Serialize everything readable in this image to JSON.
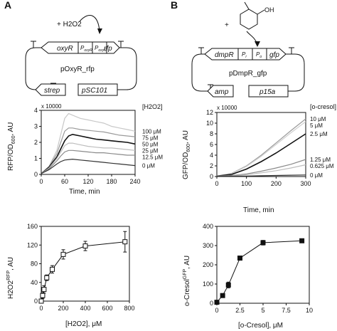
{
  "panels": {
    "A": {
      "letter": "A",
      "inducer": "+ H2O2",
      "plasmid": {
        "name": "pOxyR_rfp",
        "genes": {
          "oxyR": "oxyR",
          "rfp": "rfp",
          "strep": "strep",
          "ori": "pSC101"
        },
        "promoters": {
          "p1": "P",
          "p1_sub": "oxyR",
          "p2": "P",
          "p2_sub": "oxyS"
        }
      },
      "time_course": {
        "legend_title": "[H2O2]",
        "multiplier": "x 10000",
        "ylabel_main": "RFP/OD",
        "ylabel_sub": "600",
        "ylabel_tail": ", AU",
        "xlabel": "Time, min",
        "xticks": [
          "0",
          "60",
          "120",
          "180",
          "240"
        ],
        "yticks": [
          "0",
          "1",
          "2",
          "3",
          "4"
        ]
      },
      "dose": {
        "ylabel_main": "H2O2",
        "ylabel_sup": "RFP",
        "ylabel_tail": ", AU",
        "xlabel": "[H2O2], μM",
        "xticks": [
          "0",
          "200",
          "400",
          "600",
          "800"
        ],
        "yticks": [
          "0",
          "40",
          "80",
          "120",
          "160"
        ]
      }
    },
    "B": {
      "letter": "B",
      "inducer": "+",
      "molecule_oh": "OH",
      "plasmid": {
        "name": "pDmpR_gfp",
        "genes": {
          "dmpR": "dmpR",
          "gfp": "gfp",
          "amp": "amp",
          "ori": "p15a"
        },
        "promoters": {
          "p1": "P",
          "p1_sub": "r",
          "p2": "P",
          "p2_sub": "o"
        }
      },
      "time_course": {
        "legend_title": "[o-cresol]",
        "multiplier": "x 10000",
        "ylabel_main": "GFP/OD",
        "ylabel_sub": "600",
        "ylabel_tail": ", AU",
        "xlabel": "Time, min",
        "xticks": [
          "0",
          "100",
          "200",
          "300"
        ],
        "yticks": [
          "0",
          "2",
          "4",
          "6",
          "8",
          "10",
          "12"
        ]
      },
      "dose": {
        "ylabel_main": "o-Cresol",
        "ylabel_sup": "GFP",
        "ylabel_tail": ", AU",
        "xlabel": "[o-Cresol], μM",
        "xticks": [
          "0",
          "2.5",
          "5",
          "7.5",
          "10"
        ],
        "yticks": [
          "0",
          "100",
          "200",
          "300",
          "400"
        ]
      }
    }
  },
  "chart_data": [
    {
      "type": "line",
      "panel": "A",
      "xlabel": "Time, min",
      "ylabel": "RFP/OD600, AU",
      "xlim": [
        0,
        240
      ],
      "ylim": [
        0,
        4
      ],
      "y_multiplier": "x 10000",
      "legend_title": "[H2O2]",
      "series": [
        {
          "name": "100 μM",
          "color": "#c8c8c8",
          "points": [
            [
              0,
              0.05
            ],
            [
              20,
              0.5
            ],
            [
              40,
              1.5
            ],
            [
              50,
              2.5
            ],
            [
              60,
              3.5
            ],
            [
              70,
              3.8
            ],
            [
              80,
              3.7
            ],
            [
              100,
              3.5
            ],
            [
              120,
              3.4
            ],
            [
              140,
              3.3
            ],
            [
              160,
              3.2
            ],
            [
              180,
              3.0
            ],
            [
              200,
              2.9
            ],
            [
              220,
              2.8
            ],
            [
              240,
              2.7
            ]
          ]
        },
        {
          "name": "75 μM",
          "color": "#9a9a9a",
          "points": [
            [
              0,
              0.05
            ],
            [
              20,
              0.5
            ],
            [
              40,
              1.3
            ],
            [
              50,
              2.0
            ],
            [
              60,
              2.7
            ],
            [
              70,
              2.9
            ],
            [
              80,
              2.9
            ],
            [
              100,
              2.8
            ],
            [
              120,
              2.75
            ],
            [
              140,
              2.7
            ],
            [
              160,
              2.65
            ],
            [
              180,
              2.55
            ],
            [
              200,
              2.45
            ],
            [
              220,
              2.4
            ],
            [
              240,
              2.35
            ]
          ]
        },
        {
          "name": "50 μM",
          "color": "#111111",
          "points": [
            [
              0,
              0.05
            ],
            [
              20,
              0.45
            ],
            [
              40,
              1.1
            ],
            [
              50,
              1.6
            ],
            [
              60,
              2.1
            ],
            [
              70,
              2.4
            ],
            [
              80,
              2.5
            ],
            [
              100,
              2.4
            ],
            [
              120,
              2.3
            ],
            [
              140,
              2.2
            ],
            [
              160,
              2.15
            ],
            [
              180,
              2.1
            ],
            [
              200,
              2.05
            ],
            [
              220,
              2.0
            ],
            [
              240,
              1.9
            ]
          ]
        },
        {
          "name": "25 μM",
          "color": "#bdbdbd",
          "points": [
            [
              0,
              0.05
            ],
            [
              20,
              0.4
            ],
            [
              40,
              1.0
            ],
            [
              50,
              1.4
            ],
            [
              60,
              1.8
            ],
            [
              70,
              1.95
            ],
            [
              80,
              1.95
            ],
            [
              100,
              1.85
            ],
            [
              120,
              1.75
            ],
            [
              140,
              1.7
            ],
            [
              160,
              1.65
            ],
            [
              180,
              1.65
            ],
            [
              200,
              1.6
            ],
            [
              220,
              1.55
            ],
            [
              240,
              1.5
            ]
          ]
        },
        {
          "name": "12.5 μM",
          "color": "#8a8a8a",
          "points": [
            [
              0,
              0.05
            ],
            [
              20,
              0.35
            ],
            [
              40,
              0.85
            ],
            [
              50,
              1.15
            ],
            [
              60,
              1.4
            ],
            [
              70,
              1.5
            ],
            [
              80,
              1.5
            ],
            [
              100,
              1.45
            ],
            [
              120,
              1.4
            ],
            [
              140,
              1.35
            ],
            [
              160,
              1.35
            ],
            [
              180,
              1.3
            ],
            [
              200,
              1.25
            ],
            [
              220,
              1.2
            ],
            [
              240,
              1.2
            ]
          ]
        },
        {
          "name": "0 μM",
          "color": "#333333",
          "points": [
            [
              0,
              0.05
            ],
            [
              20,
              0.3
            ],
            [
              40,
              0.65
            ],
            [
              50,
              0.8
            ],
            [
              60,
              0.9
            ],
            [
              80,
              0.95
            ],
            [
              100,
              0.9
            ],
            [
              120,
              0.85
            ],
            [
              140,
              0.8
            ],
            [
              160,
              0.75
            ],
            [
              180,
              0.7
            ],
            [
              200,
              0.65
            ],
            [
              220,
              0.6
            ],
            [
              240,
              0.55
            ]
          ]
        }
      ]
    },
    {
      "type": "line",
      "panel": "B",
      "xlabel": "Time, min",
      "ylabel": "GFP/OD600, AU",
      "xlim": [
        0,
        300
      ],
      "ylim": [
        0,
        12
      ],
      "y_multiplier": "x 10000",
      "legend_title": "[o-cresol]",
      "series": [
        {
          "name": "10 μM",
          "color": "#9a9a9a",
          "points": [
            [
              0,
              0.1
            ],
            [
              50,
              0.6
            ],
            [
              100,
              2.0
            ],
            [
              150,
              4.0
            ],
            [
              200,
              6.3
            ],
            [
              250,
              8.6
            ],
            [
              300,
              10.8
            ]
          ]
        },
        {
          "name": "5 μM",
          "color": "#cfcfcf",
          "points": [
            [
              0,
              0.1
            ],
            [
              50,
              0.55
            ],
            [
              100,
              1.9
            ],
            [
              150,
              3.8
            ],
            [
              200,
              6.0
            ],
            [
              250,
              8.2
            ],
            [
              300,
              10.3
            ]
          ]
        },
        {
          "name": "2.5 μM",
          "color": "#111111",
          "points": [
            [
              0,
              0.1
            ],
            [
              50,
              0.4
            ],
            [
              100,
              1.4
            ],
            [
              150,
              2.8
            ],
            [
              200,
              4.4
            ],
            [
              250,
              6.2
            ],
            [
              300,
              8.0
            ]
          ]
        },
        {
          "name": "1.25 μM",
          "color": "#8a8a8a",
          "points": [
            [
              0,
              0.1
            ],
            [
              50,
              0.2
            ],
            [
              100,
              0.5
            ],
            [
              150,
              1.0
            ],
            [
              200,
              1.6
            ],
            [
              250,
              2.3
            ],
            [
              300,
              3.2
            ]
          ]
        },
        {
          "name": "0.625 μM",
          "color": "#bdbdbd",
          "points": [
            [
              0,
              0.1
            ],
            [
              50,
              0.15
            ],
            [
              100,
              0.35
            ],
            [
              150,
              0.7
            ],
            [
              200,
              1.1
            ],
            [
              250,
              1.6
            ],
            [
              300,
              2.2
            ]
          ]
        },
        {
          "name": "0 μM",
          "color": "#333333",
          "points": [
            [
              0,
              0.05
            ],
            [
              50,
              0.08
            ],
            [
              100,
              0.1
            ],
            [
              150,
              0.15
            ],
            [
              200,
              0.2
            ],
            [
              250,
              0.25
            ],
            [
              300,
              0.3
            ]
          ]
        }
      ]
    },
    {
      "type": "line",
      "panel": "A",
      "xlabel": "[H2O2], μM",
      "ylabel": "H2O2^RFP, AU",
      "xlim": [
        0,
        800
      ],
      "ylim": [
        0,
        160
      ],
      "marker": "open-square",
      "series": [
        {
          "x": [
            0,
            12.5,
            25,
            50,
            100,
            200,
            400,
            760
          ],
          "y": [
            0,
            12,
            25,
            50,
            68,
            100,
            118,
            127
          ],
          "err": [
            2,
            6,
            8,
            6,
            8,
            10,
            10,
            22
          ]
        }
      ]
    },
    {
      "type": "line",
      "panel": "B",
      "xlabel": "[o-Cresol], μM",
      "ylabel": "o-Cresol^GFP, AU",
      "xlim": [
        0,
        10
      ],
      "ylim": [
        0,
        400
      ],
      "marker": "filled-square",
      "series": [
        {
          "x": [
            0,
            0.625,
            1.25,
            2.5,
            5,
            9.2
          ],
          "y": [
            5,
            40,
            95,
            235,
            315,
            325
          ],
          "err": [
            3,
            8,
            15,
            6,
            12,
            8
          ]
        }
      ]
    }
  ]
}
